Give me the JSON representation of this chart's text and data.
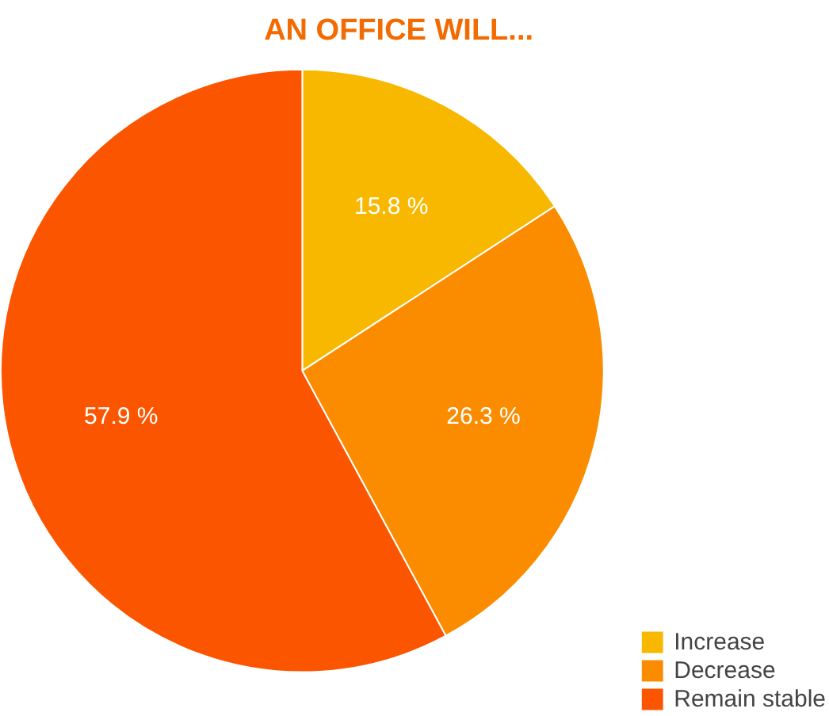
{
  "chart_data": {
    "type": "pie",
    "title": "AN OFFICE WILL...",
    "categories": [
      "Increase",
      "Decrease",
      "Remain stable"
    ],
    "values": [
      15.8,
      26.3,
      57.9
    ],
    "colors": [
      "#f8b800",
      "#fb8c00",
      "#fc5500"
    ],
    "value_labels": [
      "15.8 %",
      "26.3 %",
      "57.9 %"
    ],
    "legend": "bottom right"
  }
}
